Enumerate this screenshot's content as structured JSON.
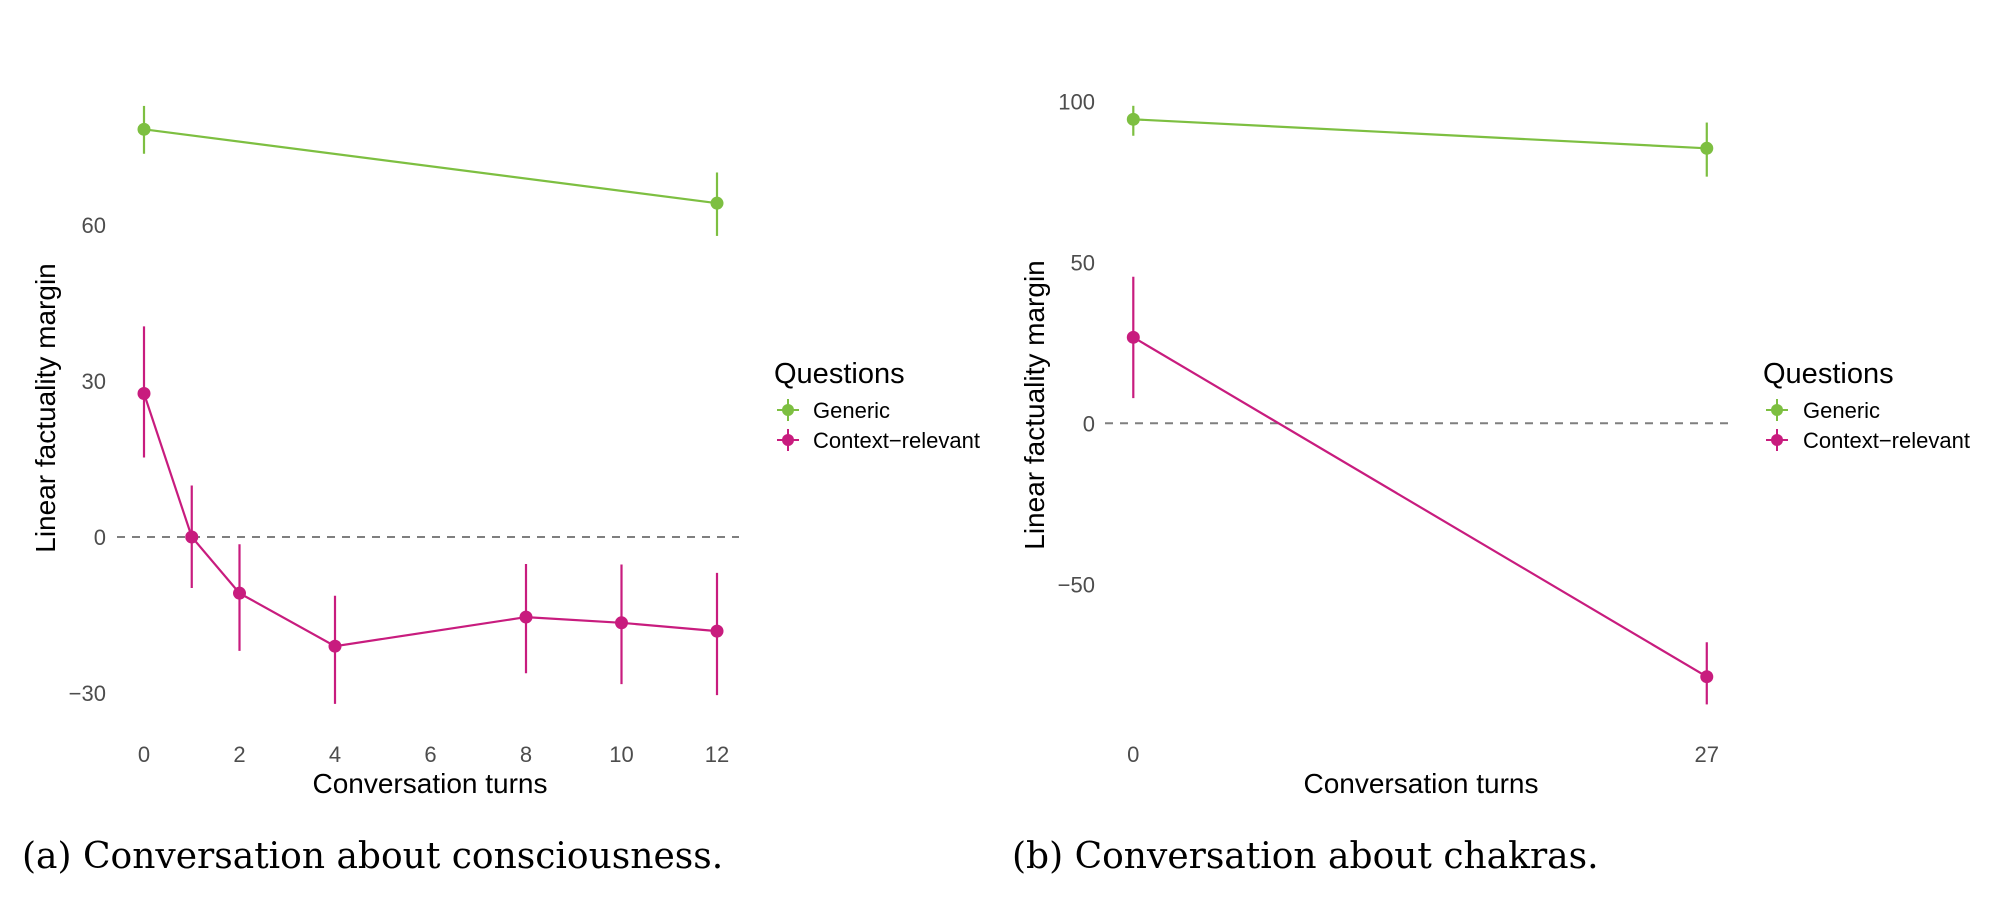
{
  "colors": {
    "generic": "#7dbf41",
    "context_relevant": "#c81c7e",
    "zero_line": "#7f7f7f"
  },
  "chart_data": [
    {
      "type": "line",
      "subtitle": "(a) Conversation about consciousness.",
      "xlabel": "Conversation turns",
      "ylabel": "Linear factuality margin",
      "xticks": [
        0,
        2,
        4,
        6,
        8,
        10,
        12
      ],
      "yticks": [
        -30,
        0,
        30,
        60
      ],
      "xlim": [
        0,
        12
      ],
      "ylim": [
        -35,
        85
      ],
      "grid": false,
      "reference_line": {
        "y": 0,
        "style": "dashed"
      },
      "legend": {
        "title": "Questions",
        "position": "right",
        "entries": [
          "Generic",
          "Context−relevant"
        ]
      },
      "series": [
        {
          "name": "Generic",
          "x": [
            0,
            12
          ],
          "y": [
            78.4,
            64.2
          ],
          "err_low": [
            73.7,
            57.9
          ],
          "err_high": [
            82.9,
            70.1
          ]
        },
        {
          "name": "Context−relevant",
          "x": [
            0,
            1,
            2,
            4,
            8,
            10,
            12
          ],
          "y": [
            27.6,
            0.0,
            -10.8,
            -21.0,
            -15.4,
            -16.5,
            -18.1
          ],
          "err_low": [
            15.3,
            -9.8,
            -21.9,
            -32.1,
            -26.2,
            -28.3,
            -30.4
          ],
          "err_high": [
            40.5,
            9.9,
            -1.4,
            -11.3,
            -5.2,
            -5.3,
            -6.9
          ]
        }
      ]
    },
    {
      "type": "line",
      "subtitle": "(b) Conversation about chakras.",
      "xlabel": "Conversation turns",
      "ylabel": "Linear factuality margin",
      "xticks": [
        0,
        27
      ],
      "yticks": [
        -50,
        0,
        50,
        100
      ],
      "xlim": [
        0,
        27
      ],
      "ylim": [
        -90,
        100
      ],
      "grid": false,
      "reference_line": {
        "y": 0,
        "style": "dashed"
      },
      "legend": {
        "title": "Questions",
        "position": "right",
        "entries": [
          "Generic",
          "Context−relevant"
        ]
      },
      "series": [
        {
          "name": "Generic",
          "x": [
            0,
            27
          ],
          "y": [
            94.4,
            85.4
          ],
          "err_low": [
            89.3,
            76.6
          ],
          "err_high": [
            98.6,
            93.4
          ]
        },
        {
          "name": "Context−relevant",
          "x": [
            0,
            27
          ],
          "y": [
            26.7,
            -78.7
          ],
          "err_low": [
            7.8,
            -87.3
          ],
          "err_high": [
            45.5,
            -68.0
          ]
        }
      ]
    }
  ]
}
